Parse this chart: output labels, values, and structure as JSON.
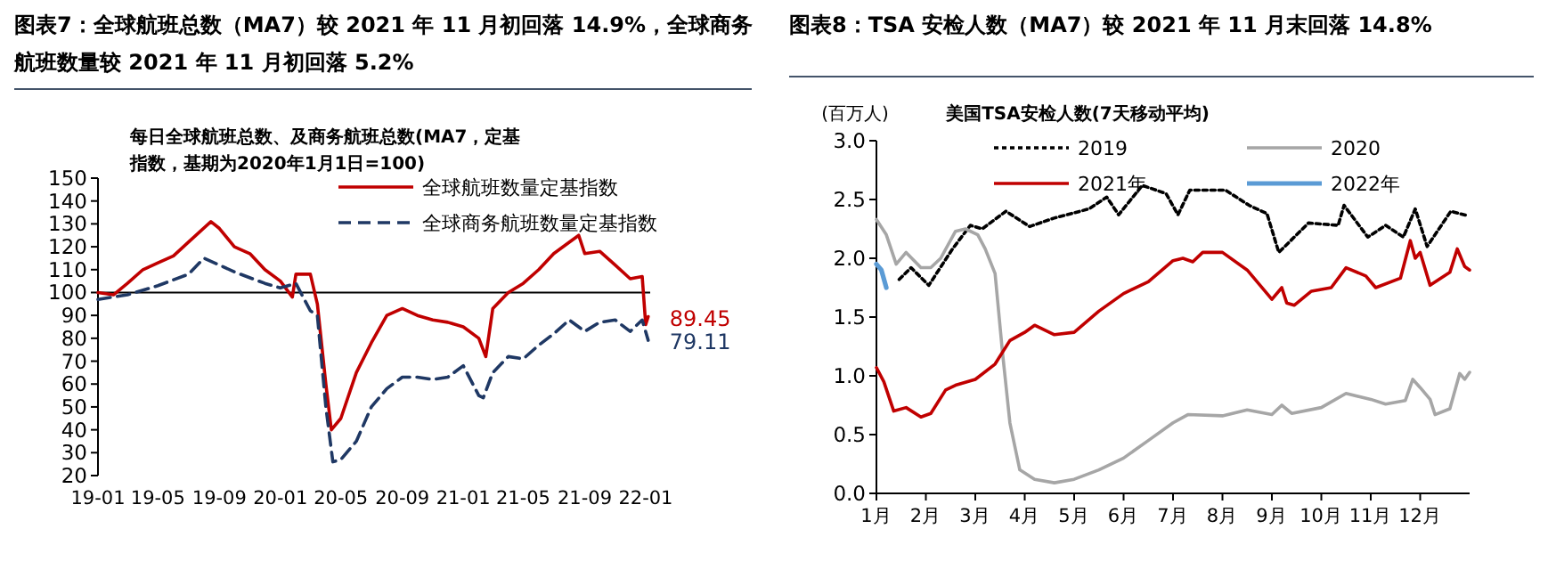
{
  "chart_data": [
    {
      "type": "line",
      "title": "图表7：全球航班总数（MA7）较 2021 年 11 月初回落 14.9%，全球商务航班数量较 2021 年 11 月初回落 5.2%",
      "subtitle": "每日全球航班总数、及商务航班总数(MA7，定基指数，基期为2020年1月1日=100)",
      "xlim": [
        "2019-01-01",
        "2022-01-10"
      ],
      "xticks": [
        {
          "value": "2019-01",
          "label": "19-01"
        },
        {
          "value": "2019-05",
          "label": "19-05"
        },
        {
          "value": "2019-09",
          "label": "19-09"
        },
        {
          "value": "2020-01",
          "label": "20-01"
        },
        {
          "value": "2020-05",
          "label": "20-05"
        },
        {
          "value": "2020-09",
          "label": "20-09"
        },
        {
          "value": "2021-01",
          "label": "21-01"
        },
        {
          "value": "2021-05",
          "label": "21-05"
        },
        {
          "value": "2021-09",
          "label": "21-09"
        },
        {
          "value": "2022-01",
          "label": "22-01"
        }
      ],
      "ylim": [
        20,
        150
      ],
      "yticks": [
        20,
        30,
        40,
        50,
        60,
        70,
        80,
        90,
        100,
        110,
        120,
        130,
        140,
        150
      ],
      "grid": false,
      "legend": "top right",
      "ref_lines": [
        {
          "axis": "y",
          "value": 100,
          "color": "#000000"
        }
      ],
      "series": [
        {
          "name": "全球航班数量定基指数",
          "color": "#c00000",
          "line_style": "solid",
          "x": [
            "2019-01-01",
            "2019-02-01",
            "2019-03-01",
            "2019-04-01",
            "2019-05-01",
            "2019-06-01",
            "2019-07-01",
            "2019-08-15",
            "2019-09-01",
            "2019-10-01",
            "2019-11-01",
            "2019-12-01",
            "2020-01-01",
            "2020-01-25",
            "2020-02-01",
            "2020-03-01",
            "2020-03-15",
            "2020-04-01",
            "2020-04-12",
            "2020-05-01",
            "2020-06-01",
            "2020-07-01",
            "2020-08-01",
            "2020-09-01",
            "2020-10-01",
            "2020-11-01",
            "2020-12-01",
            "2021-01-01",
            "2021-02-01",
            "2021-02-15",
            "2021-03-01",
            "2021-04-01",
            "2021-05-01",
            "2021-06-01",
            "2021-07-01",
            "2021-08-01",
            "2021-08-20",
            "2021-09-01",
            "2021-10-01",
            "2021-11-01",
            "2021-12-01",
            "2021-12-25",
            "2022-01-01",
            "2022-01-06"
          ],
          "values": [
            100,
            99,
            104,
            110,
            113,
            116,
            122,
            131,
            128,
            120,
            117,
            110,
            105,
            98,
            108,
            108,
            95,
            60,
            40,
            45,
            65,
            78,
            90,
            93,
            90,
            88,
            87,
            85,
            80,
            72,
            93,
            100,
            104,
            110,
            117,
            122,
            125,
            117,
            118,
            112,
            106,
            107,
            86,
            89.45
          ]
        },
        {
          "name": "全球商务航班数量定基指数",
          "color": "#1f3864",
          "line_style": "dashed",
          "x": [
            "2019-01-01",
            "2019-03-01",
            "2019-05-01",
            "2019-07-01",
            "2019-08-01",
            "2019-09-01",
            "2019-10-01",
            "2019-12-01",
            "2020-01-01",
            "2020-02-01",
            "2020-03-01",
            "2020-03-15",
            "2020-04-01",
            "2020-04-15",
            "2020-05-01",
            "2020-06-01",
            "2020-07-01",
            "2020-08-01",
            "2020-09-01",
            "2020-10-01",
            "2020-11-01",
            "2020-12-01",
            "2021-01-01",
            "2021-02-01",
            "2021-02-10",
            "2021-03-01",
            "2021-04-01",
            "2021-05-01",
            "2021-06-01",
            "2021-07-01",
            "2021-08-01",
            "2021-09-01",
            "2021-10-01",
            "2021-11-01",
            "2021-12-01",
            "2021-12-25",
            "2022-01-06"
          ],
          "values": [
            97,
            99,
            103,
            108,
            115,
            112,
            109,
            104,
            102,
            104,
            92,
            90,
            50,
            26,
            27,
            35,
            50,
            58,
            63,
            63,
            62,
            63,
            68,
            55,
            54,
            65,
            72,
            71,
            77,
            82,
            88,
            83,
            87,
            88,
            83,
            88,
            79.11
          ]
        }
      ],
      "annotations": [
        {
          "text": "89.45",
          "x": "2022-01-06",
          "y": 89.45
        },
        {
          "text": "79.11",
          "x": "2022-01-06",
          "y": 79.11
        }
      ]
    },
    {
      "type": "line",
      "title": "图表8：TSA 安检人数（MA7）较 2021 年 11 月末回落 14.8%",
      "subtitle": "美国TSA安检人数(7天移动平均)",
      "ylabel": "(百万人)",
      "xlim": [
        1,
        13
      ],
      "xticks": [
        {
          "value": 1,
          "label": "1月"
        },
        {
          "value": 2,
          "label": "2月"
        },
        {
          "value": 3,
          "label": "3月"
        },
        {
          "value": 4,
          "label": "4月"
        },
        {
          "value": 5,
          "label": "5月"
        },
        {
          "value": 6,
          "label": "6月"
        },
        {
          "value": 7,
          "label": "7月"
        },
        {
          "value": 8,
          "label": "8月"
        },
        {
          "value": 9,
          "label": "9月"
        },
        {
          "value": 10,
          "label": "10月"
        },
        {
          "value": 11,
          "label": "11月"
        },
        {
          "value": 12,
          "label": "12月"
        }
      ],
      "ylim": [
        0,
        3
      ],
      "yticks": [
        {
          "value": 0,
          "label": "0.0"
        },
        {
          "value": 0.5,
          "label": "0.5"
        },
        {
          "value": 1,
          "label": "1.0"
        },
        {
          "value": 1.5,
          "label": "1.5"
        },
        {
          "value": 2,
          "label": "2.0"
        },
        {
          "value": 2.5,
          "label": "2.5"
        },
        {
          "value": 3,
          "label": "3.0"
        }
      ],
      "grid": false,
      "legend": "top",
      "series": [
        {
          "name": "2019",
          "color": "#000000",
          "line_style": "dotted",
          "x": [
            1.46,
            1.7,
            2.06,
            2.54,
            2.9,
            3.14,
            3.62,
            4.1,
            4.58,
            5.3,
            5.66,
            5.9,
            6.38,
            6.86,
            7.1,
            7.34,
            8.06,
            8.54,
            8.9,
            9.14,
            9.74,
            10.34,
            10.46,
            10.94,
            11.3,
            11.66,
            11.9,
            12.14,
            12.62,
            12.98
          ],
          "values": [
            1.82,
            1.92,
            1.77,
            2.08,
            2.28,
            2.25,
            2.4,
            2.27,
            2.34,
            2.42,
            2.52,
            2.37,
            2.62,
            2.55,
            2.37,
            2.58,
            2.58,
            2.45,
            2.38,
            2.05,
            2.3,
            2.28,
            2.45,
            2.18,
            2.28,
            2.18,
            2.42,
            2.1,
            2.4,
            2.36
          ]
        },
        {
          "name": "2020",
          "color": "#a6a6a6",
          "line_style": "solid",
          "x": [
            1,
            1.2,
            1.4,
            1.6,
            1.9,
            2.1,
            2.3,
            2.6,
            2.8,
            3.05,
            3.2,
            3.4,
            3.55,
            3.7,
            3.9,
            4.2,
            4.6,
            5,
            5.5,
            6,
            6.5,
            7,
            7.3,
            8,
            8.5,
            9,
            9.2,
            9.4,
            10,
            10.5,
            11,
            11.3,
            11.7,
            11.85,
            12,
            12.2,
            12.3,
            12.6,
            12.8,
            12.9,
            13
          ],
          "values": [
            2.33,
            2.2,
            1.95,
            2.05,
            1.92,
            1.92,
            2.0,
            2.23,
            2.25,
            2.2,
            2.08,
            1.87,
            1.2,
            0.6,
            0.2,
            0.12,
            0.09,
            0.12,
            0.2,
            0.3,
            0.45,
            0.6,
            0.67,
            0.66,
            0.71,
            0.67,
            0.75,
            0.68,
            0.73,
            0.85,
            0.8,
            0.76,
            0.79,
            0.97,
            0.9,
            0.8,
            0.67,
            0.72,
            1.02,
            0.97,
            1.03
          ]
        },
        {
          "name": "2021年",
          "color": "#c00000",
          "line_style": "solid",
          "x": [
            1,
            1.15,
            1.35,
            1.6,
            1.9,
            2.1,
            2.4,
            2.6,
            3,
            3.4,
            3.7,
            4,
            4.2,
            4.6,
            5,
            5.5,
            6,
            6.5,
            7,
            7.2,
            7.4,
            7.6,
            8,
            8.5,
            9,
            9.2,
            9.3,
            9.45,
            9.8,
            10.2,
            10.5,
            10.9,
            11.1,
            11.6,
            11.8,
            11.9,
            12,
            12.2,
            12.6,
            12.75,
            12.9,
            13
          ],
          "values": [
            1.07,
            0.95,
            0.7,
            0.73,
            0.65,
            0.68,
            0.88,
            0.92,
            0.97,
            1.1,
            1.3,
            1.37,
            1.43,
            1.35,
            1.37,
            1.55,
            1.7,
            1.8,
            1.98,
            2.0,
            1.97,
            2.05,
            2.05,
            1.9,
            1.65,
            1.75,
            1.62,
            1.6,
            1.72,
            1.75,
            1.92,
            1.85,
            1.75,
            1.83,
            2.15,
            2.0,
            2.05,
            1.77,
            1.88,
            2.08,
            1.93,
            1.9
          ]
        },
        {
          "name": "2022年",
          "color": "#5b9bd5",
          "line_style": "solid",
          "x": [
            1,
            1.1,
            1.2
          ],
          "values": [
            1.95,
            1.9,
            1.75
          ]
        }
      ]
    }
  ]
}
